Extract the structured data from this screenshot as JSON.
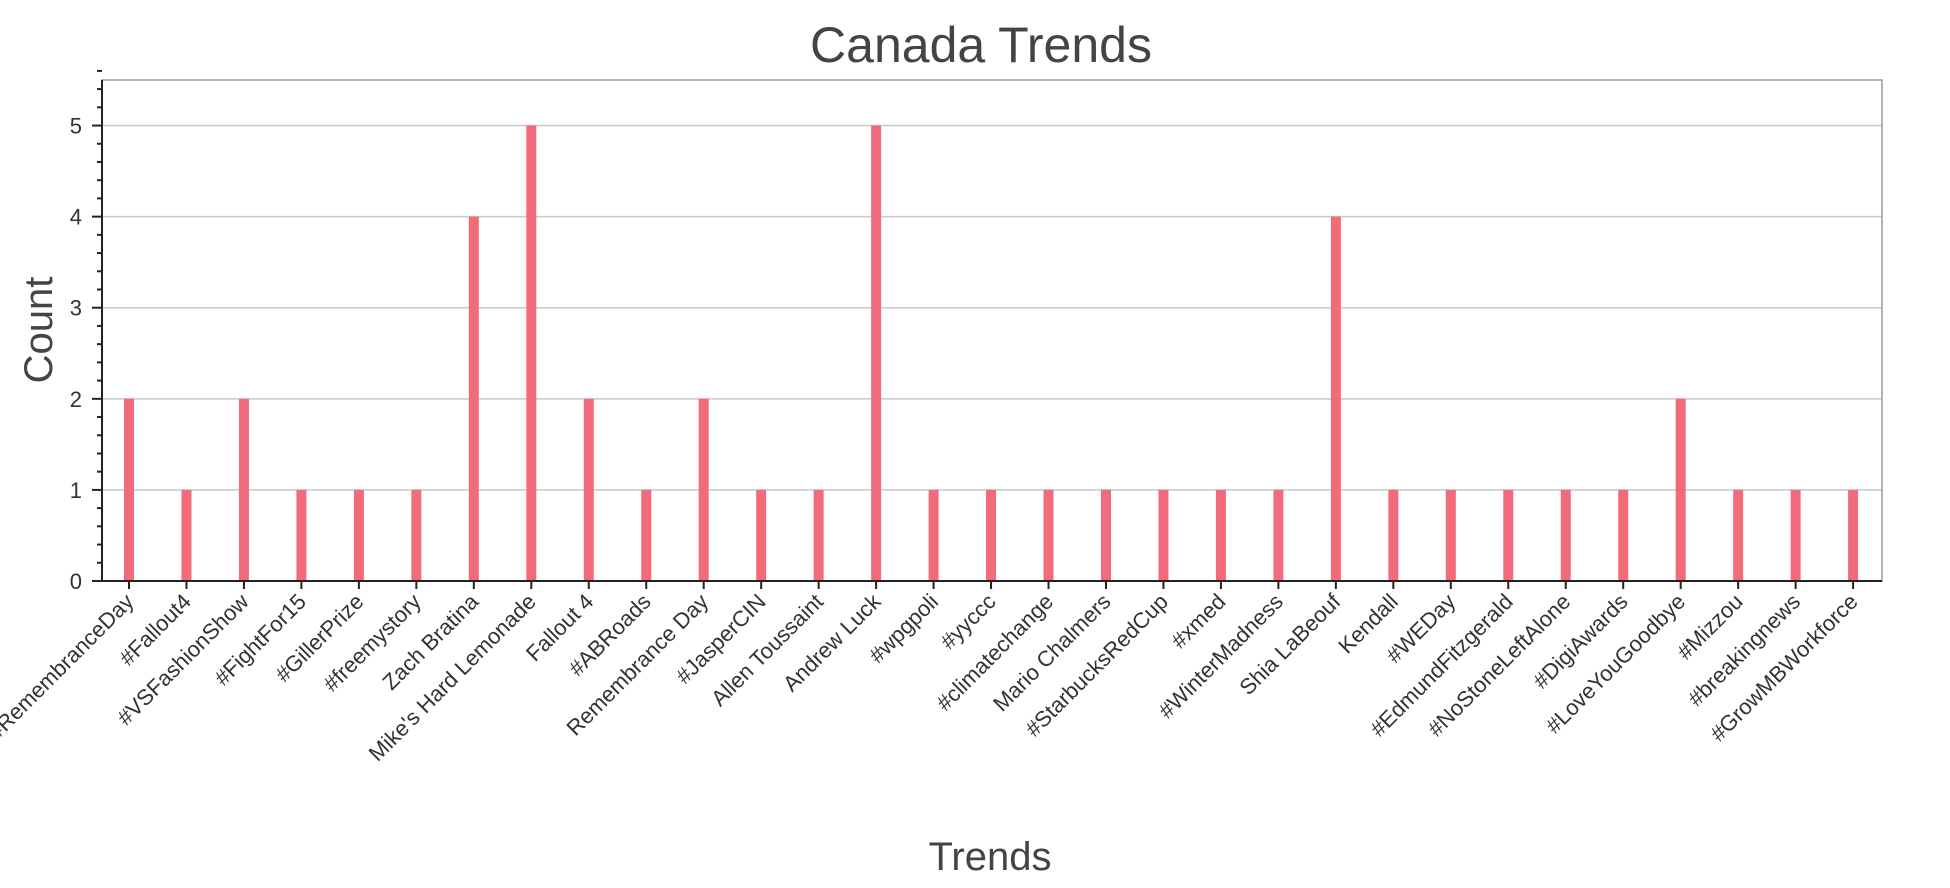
{
  "chart_data": {
    "type": "bar",
    "title": "Canada Trends",
    "xlabel": "Trends",
    "ylabel": "Count",
    "ylim": [
      0,
      5.5
    ],
    "yticks": [
      0,
      1,
      2,
      3,
      4,
      5
    ],
    "grid": "horizontal",
    "bar_color": "#f26b7a",
    "categories": [
      "#RemembranceDay",
      "#Fallout4",
      "#VSFashionShow",
      "#FightFor15",
      "#GillerPrize",
      "#freemystory",
      "Zach Bratina",
      "Mike's Hard Lemonade",
      "Fallout 4",
      "#ABRoads",
      "Remembrance Day",
      "#JasperCIN",
      "Allen Toussaint",
      "Andrew Luck",
      "#wpgpoli",
      "#yyccc",
      "#climatechange",
      "Mario Chalmers",
      "#StarbucksRedCup",
      "#xmed",
      "#WinterMadness",
      "Shia LaBeouf",
      "Kendall",
      "#WEDay",
      "#EdmundFitzgerald",
      "#NoStoneLeftAlone",
      "#DigiAwards",
      "#LoveYouGoodbye",
      "#Mizzou",
      "#breakingnews",
      "#GrowMBWorkforce"
    ],
    "values": [
      2,
      1,
      2,
      1,
      1,
      1,
      4,
      5,
      2,
      1,
      2,
      1,
      1,
      5,
      1,
      1,
      1,
      1,
      1,
      1,
      1,
      4,
      1,
      1,
      1,
      1,
      1,
      2,
      1,
      1,
      1
    ]
  }
}
